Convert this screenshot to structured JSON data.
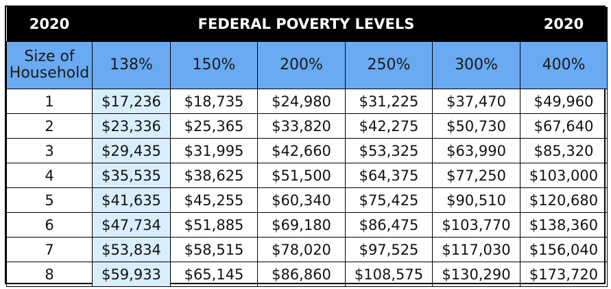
{
  "title": {
    "left_year": "2020",
    "center": "FEDERAL POVERTY LEVELS",
    "right_year": "2020"
  },
  "header": {
    "size_label_line1": "Size of",
    "size_label_line2": "Household",
    "percents": [
      "138%",
      "150%",
      "200%",
      "250%",
      "300%",
      "400%"
    ]
  },
  "rows": [
    {
      "size": "1",
      "values": [
        "$17,236",
        "$18,735",
        "$24,980",
        "$31,225",
        "$37,470",
        "$49,960"
      ]
    },
    {
      "size": "2",
      "values": [
        "$23,336",
        "$25,365",
        "$33,820",
        "$42,275",
        "$50,730",
        "$67,640"
      ]
    },
    {
      "size": "3",
      "values": [
        "$29,435",
        "$31,995",
        "$42,660",
        "$53,325",
        "$63,990",
        "$85,320"
      ]
    },
    {
      "size": "4",
      "values": [
        "$35,535",
        "$38,625",
        "$51,500",
        "$64,375",
        "$77,250",
        "$103,000"
      ]
    },
    {
      "size": "5",
      "values": [
        "$41,635",
        "$45,255",
        "$60,340",
        "$75,425",
        "$90,510",
        "$120,680"
      ]
    },
    {
      "size": "6",
      "values": [
        "$47,734",
        "$51,885",
        "$69,180",
        "$86,475",
        "$103,770",
        "$138,360"
      ]
    },
    {
      "size": "7",
      "values": [
        "$53,834",
        "$58,515",
        "$78,020",
        "$97,525",
        "$117,030",
        "$156,040"
      ]
    },
    {
      "size": "8",
      "values": [
        "$59,933",
        "$65,145",
        "$86,860",
        "$108,575",
        "$130,290",
        "$173,720"
      ]
    }
  ],
  "colors": {
    "header_bg": "#6aaaf2",
    "highlight_col_bg": "#d8eefc",
    "title_bg": "#000000",
    "title_fg": "#ffffff"
  }
}
